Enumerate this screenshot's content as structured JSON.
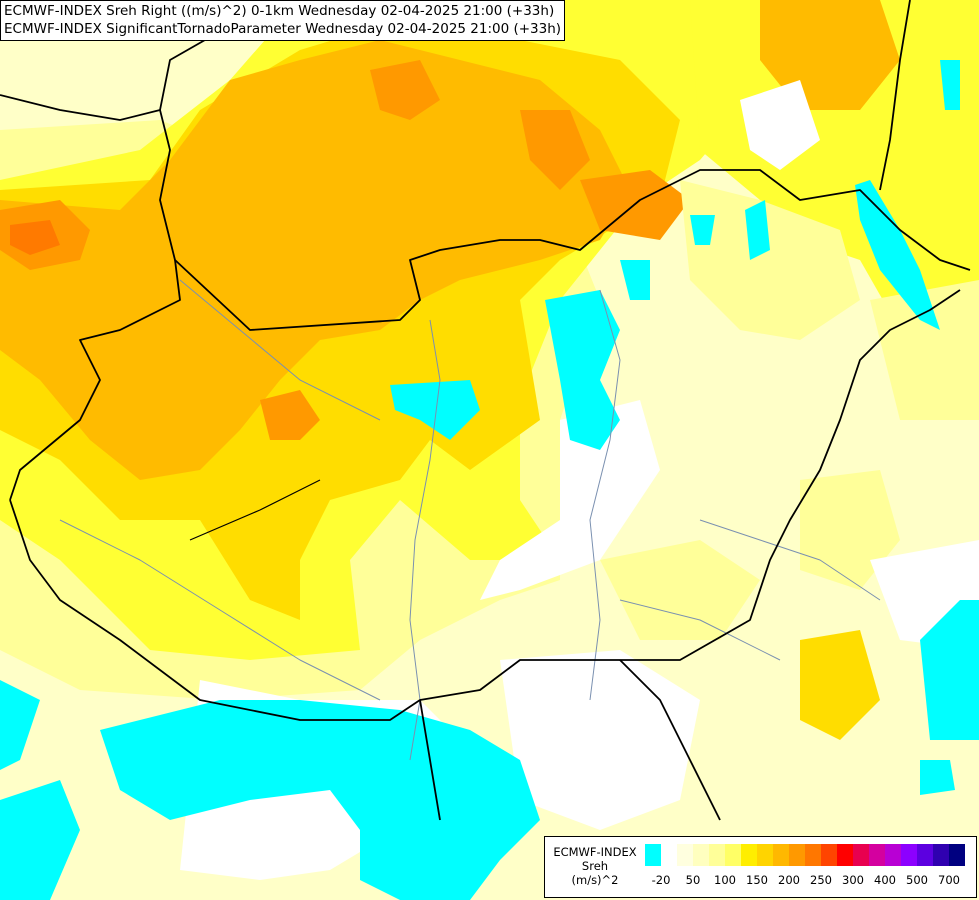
{
  "titles": {
    "line1": "ECMWF-INDEX Sreh Right ((m/s)^2) 0-1km Wednesday 02-04-2025 21:00 (+33h)",
    "line2": "ECMWF-INDEX SignificantTornadoParameter Wednesday 02-04-2025 21:00 (+33h)"
  },
  "legend": {
    "model": "ECMWF-INDEX",
    "variable": "Sreh",
    "unit": "(m/s)^2",
    "colors": [
      "#00ffff",
      "#ffffff",
      "#ffffdf",
      "#ffffbf",
      "#ffff99",
      "#ffff66",
      "#ffee00",
      "#ffd400",
      "#ffb800",
      "#ff9900",
      "#ff7700",
      "#ff4400",
      "#ff0000",
      "#e8004f",
      "#d4009f",
      "#b800d4",
      "#8c00ff",
      "#5c00e0",
      "#2f00b0",
      "#000080"
    ],
    "ticks": [
      "-20",
      "50",
      "100",
      "150",
      "200",
      "250",
      "300",
      "400",
      "500",
      "700"
    ]
  },
  "map": {
    "field_colors": {
      "cyan": "#00ffff",
      "white": "#ffffff",
      "pale": "#ffffc8",
      "light_yellow": "#ffff99",
      "yellow": "#ffff33",
      "gold": "#ffdd00",
      "orange": "#ffbb00",
      "dark_orange": "#ff9900",
      "red_orange": "#ff7a00"
    },
    "border_color": "#000000",
    "river_color": "#7a90b0"
  }
}
